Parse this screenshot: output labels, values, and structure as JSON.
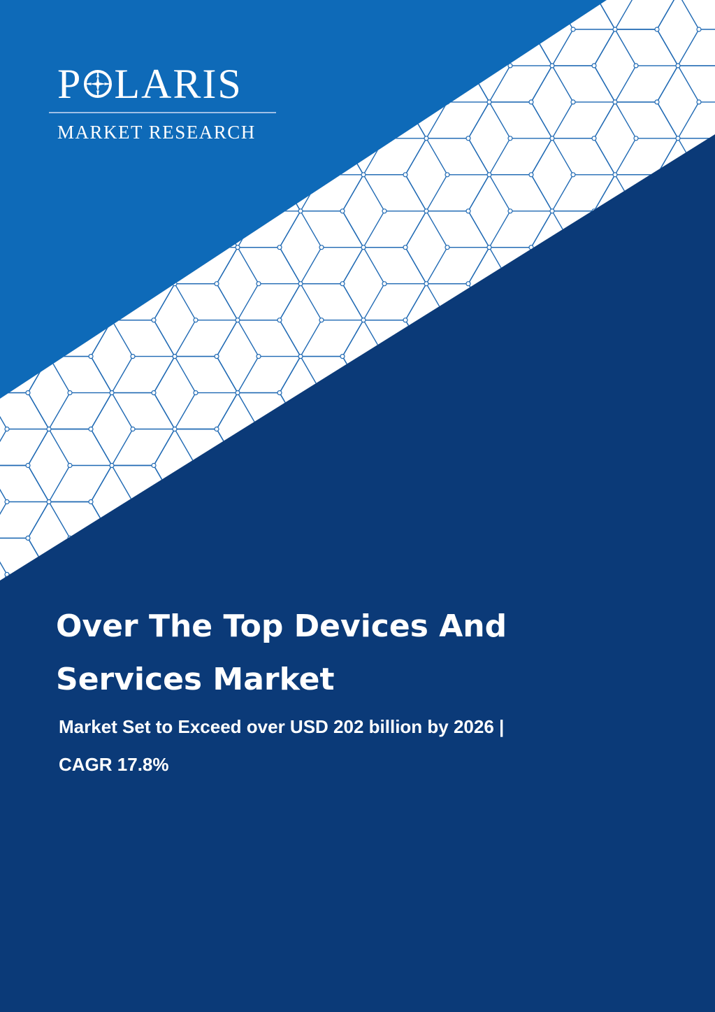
{
  "brand": {
    "name_pre": "P",
    "name_post": "LARIS",
    "tagline": "MARKET RESEARCH",
    "logo_mark": "compass-star-icon"
  },
  "report": {
    "title_line1": "Over The Top Devices And",
    "title_line2": "Services Market",
    "subtitle_line1": "Market Set to Exceed over USD 202 billion by 2026 |",
    "subtitle_line2": "CAGR 17.8%"
  },
  "colors": {
    "top_blue": "#0e6ab8",
    "dark_navy": "#0b3a78",
    "pattern_band": "#ffffff",
    "pattern_lines": "#1f69b3",
    "text": "#ffffff"
  }
}
